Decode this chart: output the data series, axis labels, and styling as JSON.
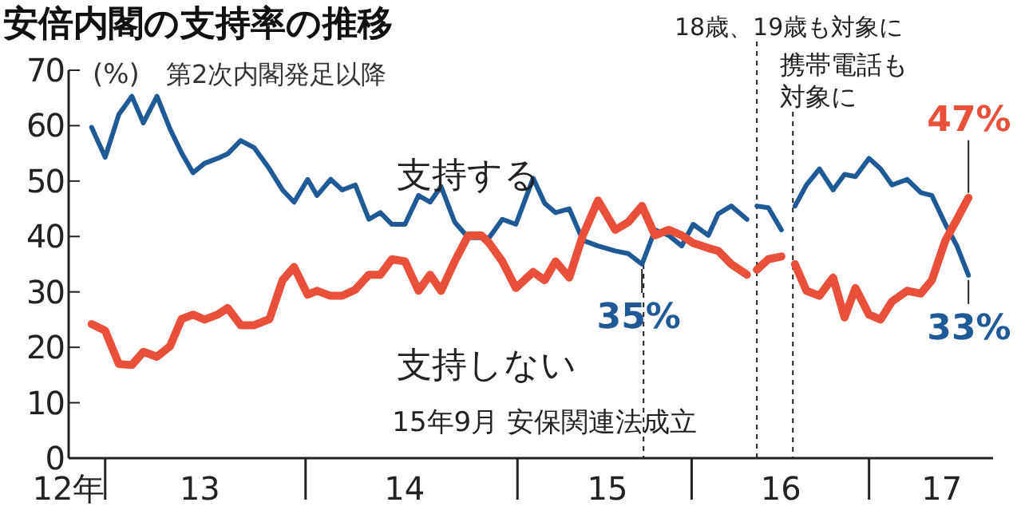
{
  "chart_data": {
    "type": "line",
    "title": "安倍内閣の支持率の推移",
    "subtitle": "第2次内閣発足以降",
    "ylabel": "(%)",
    "xlim": [
      "2012-10-23",
      "2017-08-26"
    ],
    "ylim": [
      0,
      70
    ],
    "xticks": [
      {
        "value": "2012-10-23",
        "label": "12年"
      },
      {
        "value": "2013-01-01",
        "label": null
      },
      {
        "value": "2013-07-01",
        "label": "13"
      },
      {
        "value": "2014-01-19",
        "label": null
      },
      {
        "value": "2014-07-27",
        "label": "14"
      },
      {
        "value": "2015-02-28",
        "label": null
      },
      {
        "value": "2015-08-19",
        "label": "15"
      },
      {
        "value": "2016-01-27",
        "label": null
      },
      {
        "value": "2016-07-16",
        "label": "16"
      },
      {
        "value": "2017-01-01",
        "label": null
      },
      {
        "value": "2017-05-20",
        "label": "17"
      }
    ],
    "yticks": [
      0,
      10,
      20,
      30,
      40,
      50,
      60,
      70
    ],
    "grid": false,
    "legend": false,
    "marker": "none",
    "line_style": "solid",
    "x": [
      "2012-12-06",
      "2013-01-01",
      "2013-01-27",
      "2013-02-21",
      "2013-03-15",
      "2013-04-10",
      "2013-05-05",
      "2013-05-27",
      "2013-06-18",
      "2013-07-10",
      "2013-08-04",
      "2013-08-23",
      "2013-09-17",
      "2013-10-13",
      "2013-11-11",
      "2013-12-06",
      "2013-12-28",
      "2014-01-23",
      "2014-02-10",
      "2014-03-08",
      "2014-03-30",
      "2014-04-24",
      "2014-05-20",
      "2014-06-11",
      "2014-07-03",
      "2014-07-28",
      "2014-08-23",
      "2014-09-14",
      "2014-10-05",
      "2014-10-31",
      "2014-11-26",
      "2014-12-21",
      "2015-01-05",
      "2015-01-30",
      "2015-02-25",
      "2015-03-30",
      "2015-04-21",
      "2015-05-12",
      "2015-06-07",
      "2015-07-03",
      "2015-08-01",
      "2015-09-03",
      "2015-09-28",
      "2015-10-24",
      "2015-11-18",
      "2015-12-14",
      "2016-01-08",
      "2016-01-30",
      "2016-02-28",
      "2016-03-18",
      "2016-04-12",
      "2016-05-12",
      "2016-05-22",
      "2016-05-31",
      "2016-06-22",
      "2016-07-17",
      "2016-07-30",
      "2016-08-12",
      "2016-09-03",
      "2016-09-28",
      "2016-10-24",
      "2016-11-15",
      "2016-12-06",
      "2017-01-01",
      "2017-01-23",
      "2017-02-14",
      "2017-03-15",
      "2017-04-10",
      "2017-05-01",
      "2017-05-27",
      "2017-06-18",
      "2017-07-10"
    ],
    "series": [
      {
        "name": "支持する",
        "color": "#1f5a96",
        "values": [
          59.7,
          54.3,
          62.0,
          65.3,
          60.5,
          65.3,
          59.4,
          55.1,
          51.5,
          53.2,
          54.1,
          54.9,
          57.3,
          56.0,
          52.2,
          48.4,
          46.2,
          50.3,
          47.4,
          50.3,
          48.4,
          49.3,
          43.1,
          44.3,
          42.2,
          42.2,
          47.4,
          46.2,
          49.0,
          42.6,
          39.8,
          39.8,
          39.8,
          43.1,
          42.2,
          50.5,
          46.0,
          44.3,
          45.0,
          39.3,
          38.3,
          37.4,
          36.9,
          35,
          41.2,
          40.2,
          38.3,
          42.2,
          40.2,
          44.1,
          45.5,
          43.1,
          null,
          45.5,
          45.2,
          41.2,
          null,
          45.5,
          49.3,
          52.2,
          48.4,
          51.2,
          50.8,
          54.1,
          52.2,
          49.3,
          50.3,
          47.9,
          47.4,
          42.2,
          38.3,
          33
        ]
      },
      {
        "name": "支持しない",
        "color": "#e8503a",
        "values": [
          24.2,
          23.0,
          17.0,
          16.8,
          19.2,
          18.3,
          20.2,
          25.1,
          25.9,
          25.0,
          25.9,
          27.1,
          24.0,
          24.0,
          25.1,
          32.1,
          34.5,
          29.5,
          30.2,
          29.3,
          29.3,
          30.4,
          33.1,
          33.1,
          35.9,
          35.5,
          30.2,
          33.1,
          30.2,
          35.5,
          40.2,
          40.2,
          38.8,
          35.5,
          30.7,
          33.6,
          32.1,
          35.5,
          32.6,
          40.2,
          46.5,
          41.2,
          42.6,
          45.5,
          40.2,
          41.2,
          40.2,
          38.8,
          37.9,
          37.4,
          35.0,
          33.1,
          null,
          34.0,
          35.9,
          36.4,
          null,
          35.0,
          30.2,
          29.3,
          32.6,
          25.4,
          30.7,
          25.9,
          25.0,
          28.3,
          30.2,
          29.7,
          32.1,
          39.3,
          43.1,
          47
        ]
      }
    ],
    "ref_lines": [
      {
        "axis": "x",
        "value": "2015-10-27",
        "label": "15年9月 安保関連法成立",
        "line_style": "dashed",
        "color": "#222222"
      },
      {
        "axis": "x",
        "value": "2016-05-31",
        "label": "18歳、19歳も対象に",
        "line_style": "dashed",
        "color": "#222222"
      },
      {
        "axis": "x",
        "value": "2016-08-08",
        "label": "携帯電話も対象に",
        "line_style": "dashed",
        "color": "#222222"
      }
    ],
    "annotations": [
      {
        "text": "35%",
        "x": "2015-10-24",
        "y": 35
      },
      {
        "text": "33%",
        "x": "2017-07-10",
        "y": 33
      },
      {
        "text": "47%",
        "x": "2017-07-10",
        "y": 47
      }
    ]
  }
}
